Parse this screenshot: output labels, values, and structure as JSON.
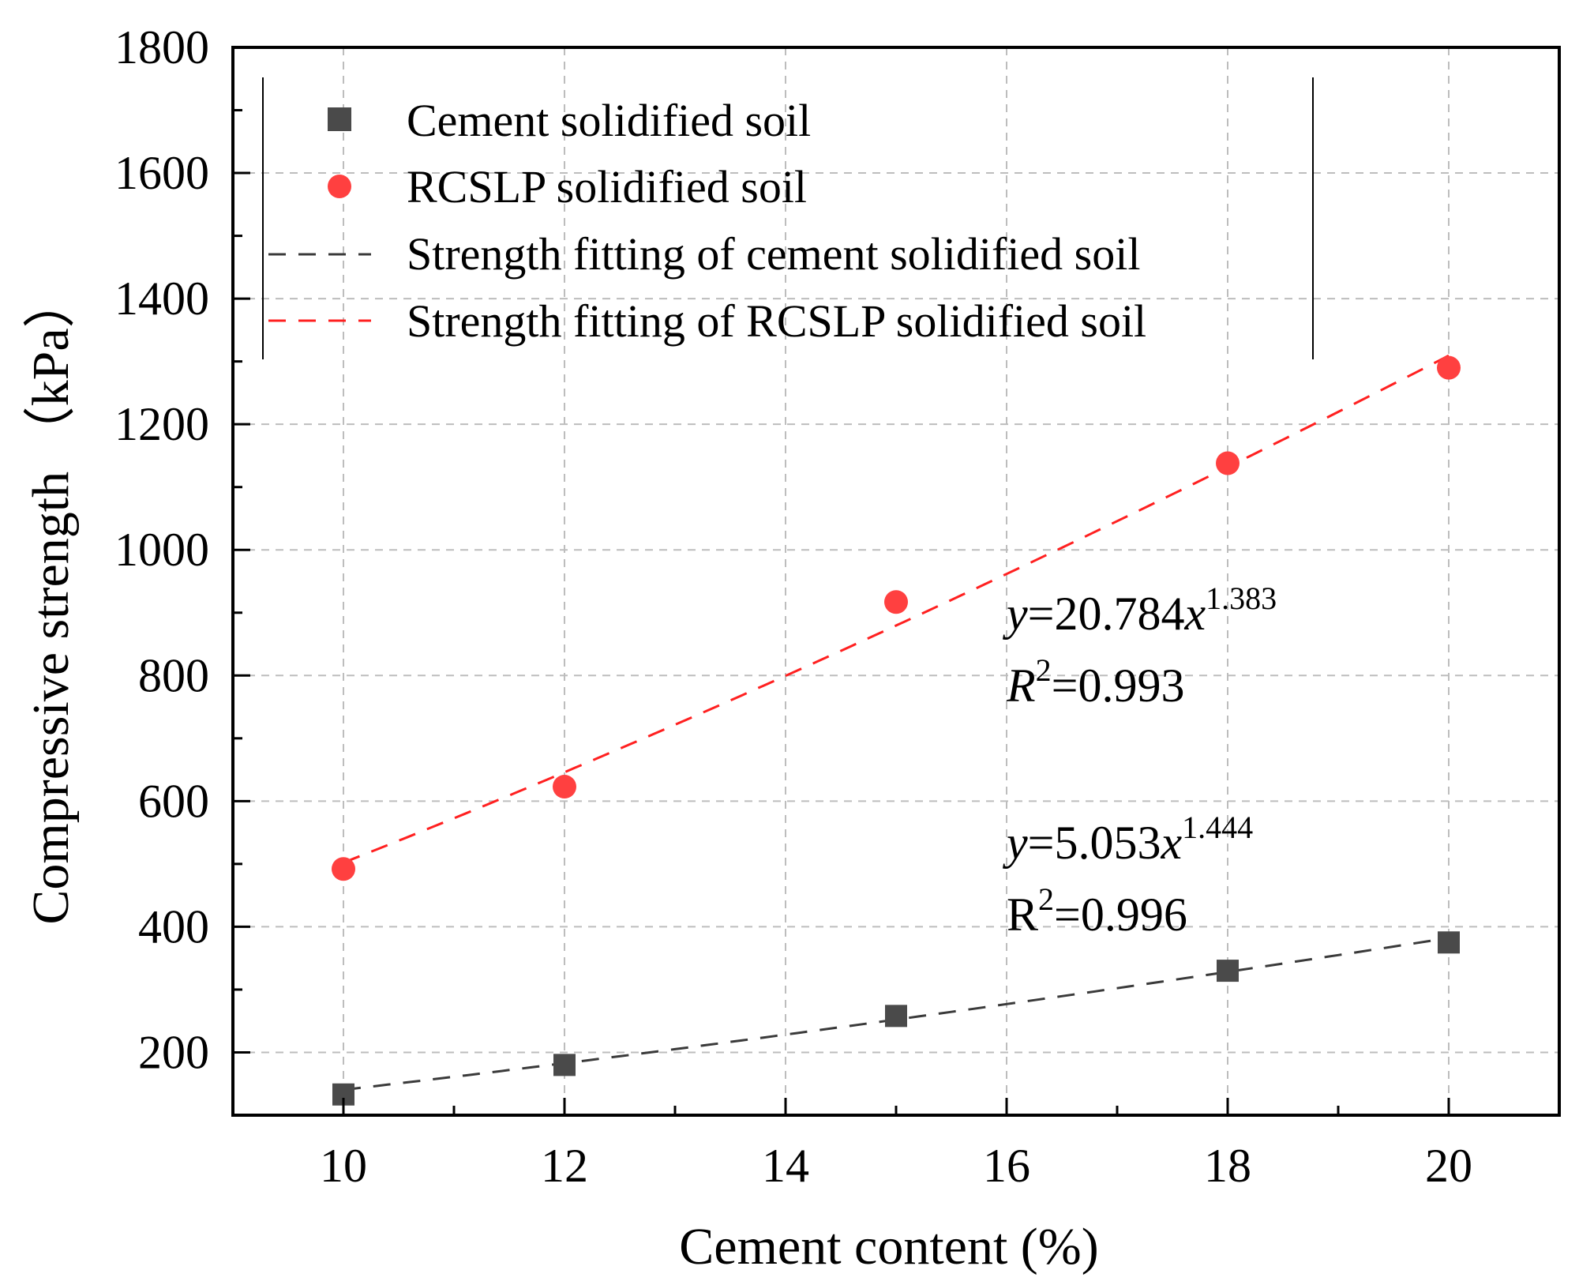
{
  "chart_data": {
    "type": "scatter",
    "xlabel": "Cement content (%)",
    "ylabel": "Compressive strength （kPa）",
    "xlim": [
      9,
      21
    ],
    "ylim": [
      100,
      1800
    ],
    "x_ticks": [
      10,
      12,
      14,
      16,
      18,
      20
    ],
    "y_ticks": [
      200,
      400,
      600,
      800,
      1000,
      1200,
      1400,
      1600,
      1800
    ],
    "grid": true,
    "legend_position": "top",
    "series": [
      {
        "name": "Cement solidified soil",
        "marker": "square",
        "color": "#4a4a4a",
        "x": [
          10,
          12,
          15,
          18,
          20
        ],
        "values": [
          133,
          180,
          258,
          330,
          375
        ]
      },
      {
        "name": "RCSLP solidified soil",
        "marker": "circle",
        "color": "#ff4040",
        "x": [
          10,
          12,
          15,
          18,
          20
        ],
        "values": [
          492,
          623,
          917,
          1138,
          1290
        ]
      }
    ],
    "fits": [
      {
        "name": "Strength fitting of cement solidified soil",
        "color": "#3a3a3a",
        "coefficient": 5.053,
        "exponent": 1.444,
        "x_range": [
          10,
          20
        ],
        "equation": {
          "y": "y",
          "eq_coef": "=5.053",
          "x": "x",
          "power": "1.444",
          "r_label": "R",
          "r_sup": "2",
          "r_value": "=0.996"
        }
      },
      {
        "name": "Strength fitting of RCSLP solidified soil",
        "color": "#ff2020",
        "coefficient": 20.784,
        "exponent": 1.383,
        "x_range": [
          10,
          20
        ],
        "equation": {
          "y": "y",
          "eq_coef": "=20.784",
          "x": "x",
          "power": "1.383",
          "r_label": "R",
          "r_sup": "2",
          "r_value": "=0.993"
        }
      }
    ]
  }
}
